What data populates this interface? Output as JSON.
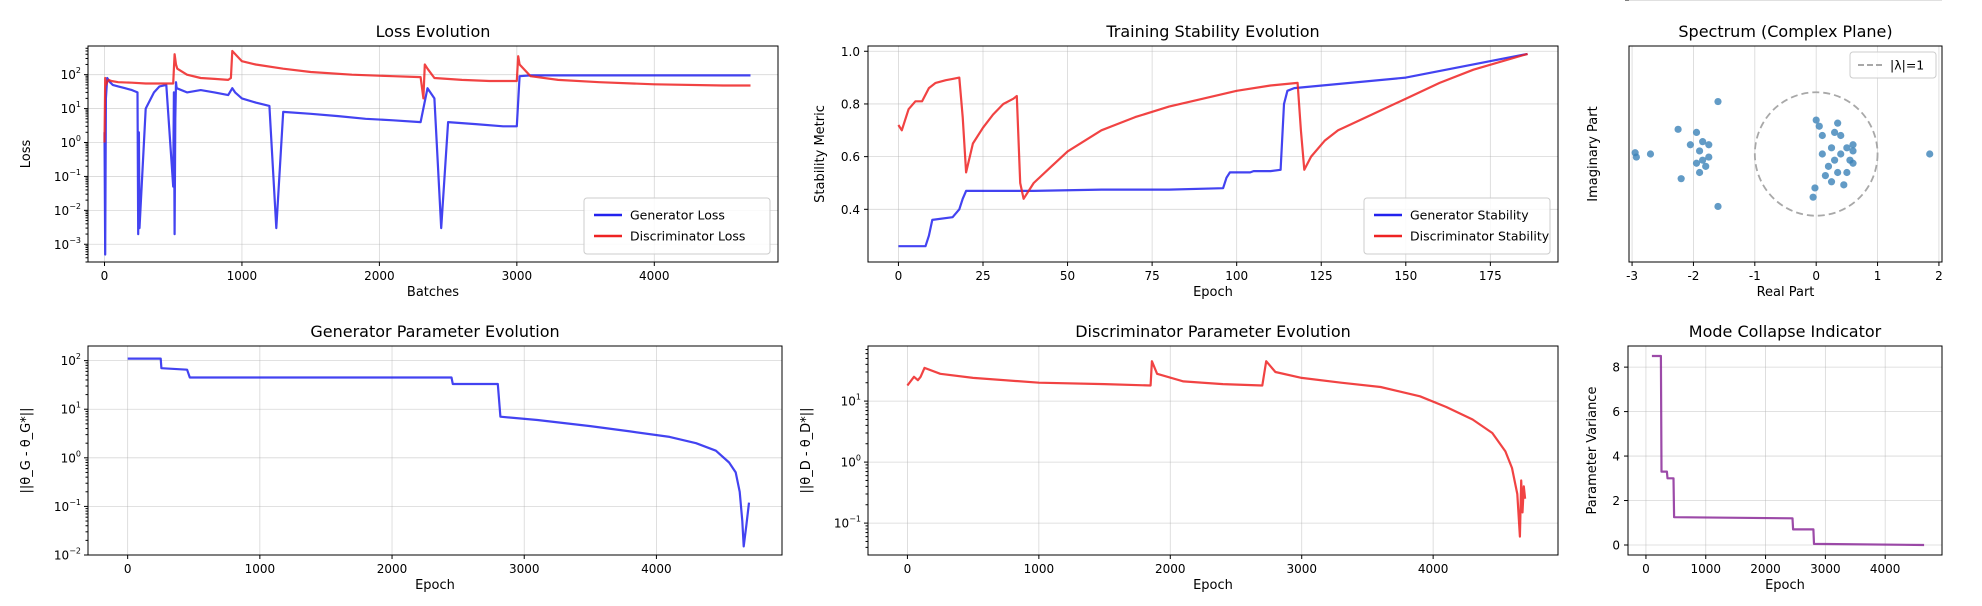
{
  "colors": {
    "generator": "#2222ee",
    "discriminator": "#ee2222",
    "scatter": "#3b82b8",
    "variance": "#8b2a99",
    "unit_circle": "#a8a8a8"
  },
  "chart_data": [
    {
      "id": "loss",
      "type": "line",
      "title": "Loss Evolution",
      "xlabel": "Batches",
      "ylabel": "Loss",
      "yscale": "log",
      "xlim": [
        -120,
        4900
      ],
      "ylim": [
        0.0003,
        700
      ],
      "xticks": [
        0,
        1000,
        2000,
        3000,
        4000
      ],
      "yticks": [
        {
          "v": 0.001,
          "b": "10",
          "e": "−3"
        },
        {
          "v": 0.01,
          "b": "10",
          "e": "−2"
        },
        {
          "v": 0.1,
          "b": "10",
          "e": "−1"
        },
        {
          "v": 1,
          "b": "10",
          "e": "0"
        },
        {
          "v": 10,
          "b": "10",
          "e": "1"
        },
        {
          "v": 100,
          "b": "10",
          "e": "2"
        }
      ],
      "grid": true,
      "legend_position": "lower-right",
      "series": [
        {
          "name": "Generator Loss",
          "color_key": "generator",
          "x": [
            0,
            5,
            10,
            20,
            40,
            60,
            100,
            150,
            200,
            240,
            245,
            250,
            255,
            300,
            360,
            400,
            450,
            500,
            505,
            510,
            515,
            520,
            525,
            600,
            700,
            800,
            900,
            930,
            950,
            1000,
            1100,
            1200,
            1250,
            1300,
            1500,
            1700,
            1900,
            2100,
            2300,
            2350,
            2400,
            2450,
            2500,
            2700,
            2900,
            3000,
            3020,
            3100,
            3500,
            4000,
            4500,
            4700
          ],
          "y": [
            2,
            0.0005,
            20,
            80,
            60,
            50,
            45,
            40,
            35,
            30,
            0.002,
            2,
            0.003,
            10,
            30,
            45,
            50,
            0.05,
            30,
            0.002,
            5,
            60,
            40,
            30,
            35,
            30,
            25,
            40,
            30,
            20,
            15,
            12,
            0.003,
            8,
            7,
            6,
            5,
            4.5,
            4,
            40,
            20,
            0.003,
            4,
            3.5,
            3,
            3,
            90,
            95,
            95,
            95,
            95,
            95
          ]
        },
        {
          "name": "Discriminator Loss",
          "color_key": "discriminator",
          "x": [
            0,
            5,
            10,
            20,
            30,
            50,
            100,
            200,
            300,
            400,
            500,
            510,
            520,
            530,
            600,
            700,
            800,
            900,
            920,
            930,
            1000,
            1100,
            1300,
            1500,
            1800,
            2100,
            2300,
            2320,
            2330,
            2350,
            2400,
            2600,
            2800,
            3000,
            3010,
            3020,
            3100,
            3300,
            3600,
            4000,
            4500,
            4700
          ],
          "y": [
            1,
            80,
            50,
            60,
            70,
            65,
            60,
            58,
            55,
            55,
            55,
            400,
            200,
            150,
            100,
            80,
            75,
            70,
            80,
            500,
            250,
            200,
            150,
            120,
            100,
            90,
            85,
            20,
            200,
            150,
            80,
            70,
            65,
            65,
            350,
            200,
            90,
            70,
            60,
            52,
            48,
            48
          ]
        }
      ]
    },
    {
      "id": "stability",
      "type": "line",
      "title": "Training Stability Evolution",
      "xlabel": "Epoch",
      "ylabel": "Stability Metric",
      "xlim": [
        -9,
        195
      ],
      "ylim": [
        0.2,
        1.02
      ],
      "xticks": [
        0,
        25,
        50,
        75,
        100,
        125,
        150,
        175
      ],
      "yticks": [
        {
          "v": 0.4,
          "t": "0.4"
        },
        {
          "v": 0.6,
          "t": "0.6"
        },
        {
          "v": 0.8,
          "t": "0.8"
        },
        {
          "v": 1.0,
          "t": "1.0"
        }
      ],
      "grid": true,
      "legend_position": "lower-right",
      "series": [
        {
          "name": "Generator Stability",
          "color_key": "generator",
          "x": [
            0,
            8,
            9,
            10,
            16,
            18,
            19,
            20,
            40,
            60,
            80,
            96,
            97,
            98,
            100,
            104,
            105,
            110,
            113,
            114,
            115,
            117,
            150,
            186
          ],
          "y": [
            0.26,
            0.26,
            0.3,
            0.36,
            0.37,
            0.4,
            0.44,
            0.47,
            0.47,
            0.475,
            0.475,
            0.48,
            0.52,
            0.54,
            0.54,
            0.54,
            0.545,
            0.545,
            0.55,
            0.8,
            0.85,
            0.86,
            0.9,
            0.99
          ]
        },
        {
          "name": "Discriminator Stability",
          "color_key": "discriminator",
          "x": [
            0,
            1,
            3,
            5,
            7,
            9,
            11,
            14,
            16,
            18,
            19,
            20,
            22,
            25,
            28,
            31,
            34,
            35,
            36,
            37,
            40,
            45,
            50,
            60,
            70,
            80,
            90,
            100,
            110,
            118,
            119,
            120,
            122,
            126,
            130,
            140,
            150,
            160,
            170,
            186
          ],
          "y": [
            0.72,
            0.7,
            0.78,
            0.81,
            0.81,
            0.86,
            0.88,
            0.89,
            0.895,
            0.9,
            0.75,
            0.54,
            0.65,
            0.71,
            0.76,
            0.8,
            0.82,
            0.83,
            0.5,
            0.44,
            0.5,
            0.56,
            0.62,
            0.7,
            0.75,
            0.79,
            0.82,
            0.85,
            0.87,
            0.88,
            0.7,
            0.55,
            0.6,
            0.66,
            0.7,
            0.76,
            0.82,
            0.88,
            0.93,
            0.99
          ]
        }
      ]
    },
    {
      "id": "spectrum",
      "type": "scatter",
      "title": "Spectrum (Complex Plane)",
      "xlabel": "Real Part",
      "ylabel": "Imaginary Part",
      "xlim": [
        -3.05,
        2.05
      ],
      "ylim": [
        -1.75,
        1.75
      ],
      "xticks": [
        -3,
        -2,
        -1,
        0,
        1,
        2
      ],
      "yticks": [
        -1,
        0,
        1
      ],
      "grid": true,
      "legend_position": "upper-right",
      "unit_circle": {
        "label": "|λ|=1",
        "radius": 1
      },
      "points": [
        [
          -2.95,
          0.02
        ],
        [
          -2.93,
          -0.05
        ],
        [
          -2.7,
          0.0
        ],
        [
          -2.25,
          0.4
        ],
        [
          -2.2,
          -0.4
        ],
        [
          -2.05,
          0.15
        ],
        [
          -1.95,
          0.35
        ],
        [
          -1.95,
          -0.15
        ],
        [
          -1.9,
          0.05
        ],
        [
          -1.9,
          -0.3
        ],
        [
          -1.85,
          0.2
        ],
        [
          -1.85,
          -0.1
        ],
        [
          -1.8,
          -0.2
        ],
        [
          -1.75,
          0.15
        ],
        [
          -1.75,
          -0.05
        ],
        [
          -1.6,
          0.85
        ],
        [
          -1.6,
          -0.85
        ],
        [
          -0.05,
          -0.7
        ],
        [
          -0.02,
          -0.55
        ],
        [
          0.0,
          0.55
        ],
        [
          0.05,
          0.45
        ],
        [
          0.1,
          0.0
        ],
        [
          0.1,
          0.3
        ],
        [
          0.15,
          -0.35
        ],
        [
          0.2,
          -0.2
        ],
        [
          0.25,
          0.1
        ],
        [
          0.25,
          -0.45
        ],
        [
          0.3,
          0.35
        ],
        [
          0.3,
          -0.1
        ],
        [
          0.35,
          0.5
        ],
        [
          0.35,
          -0.3
        ],
        [
          0.4,
          0.0
        ],
        [
          0.4,
          0.3
        ],
        [
          0.45,
          -0.5
        ],
        [
          0.5,
          0.1
        ],
        [
          0.5,
          -0.3
        ],
        [
          0.55,
          -0.1
        ],
        [
          0.6,
          0.15
        ],
        [
          0.6,
          -0.15
        ],
        [
          0.6,
          0.05
        ],
        [
          1.85,
          0.0
        ]
      ]
    },
    {
      "id": "gen_param",
      "type": "line",
      "title": "Generator Parameter Evolution",
      "xlabel": "Epoch",
      "ylabel": "||θ_G - θ_G*||",
      "yscale": "log",
      "xlim": [
        -300,
        4950
      ],
      "ylim": [
        0.01,
        200
      ],
      "xticks": [
        0,
        1000,
        2000,
        3000,
        4000
      ],
      "yticks": [
        {
          "v": 0.01,
          "b": "10",
          "e": "−2"
        },
        {
          "v": 0.1,
          "b": "10",
          "e": "−1"
        },
        {
          "v": 1,
          "b": "10",
          "e": "0"
        },
        {
          "v": 10,
          "b": "10",
          "e": "1"
        },
        {
          "v": 100,
          "b": "10",
          "e": "2"
        }
      ],
      "grid": true,
      "series": [
        {
          "name": "",
          "color_key": "generator",
          "x": [
            0,
            250,
            255,
            450,
            470,
            2450,
            2460,
            2800,
            2820,
            3100,
            3500,
            3800,
            4100,
            4300,
            4450,
            4550,
            4600,
            4630,
            4650,
            4660,
            4680,
            4700
          ],
          "y": [
            110,
            110,
            70,
            65,
            45,
            45,
            33,
            33,
            7,
            6,
            4.5,
            3.5,
            2.7,
            2,
            1.4,
            0.8,
            0.5,
            0.2,
            0.05,
            0.015,
            0.04,
            0.12
          ]
        }
      ]
    },
    {
      "id": "disc_param",
      "type": "line",
      "title": "Discriminator Parameter Evolution",
      "xlabel": "Epoch",
      "ylabel": "||θ_D - θ_D*||",
      "yscale": "log",
      "xlim": [
        -300,
        4950
      ],
      "ylim": [
        0.03,
        80
      ],
      "xticks": [
        0,
        1000,
        2000,
        3000,
        4000
      ],
      "yticks": [
        {
          "v": 0.1,
          "b": "10",
          "e": "−1"
        },
        {
          "v": 1,
          "b": "10",
          "e": "0"
        },
        {
          "v": 10,
          "b": "10",
          "e": "1"
        }
      ],
      "grid": true,
      "series": [
        {
          "name": "",
          "color_key": "discriminator",
          "x": [
            0,
            50,
            80,
            100,
            130,
            250,
            500,
            1000,
            1500,
            1850,
            1860,
            1900,
            2100,
            2400,
            2700,
            2730,
            2800,
            3000,
            3300,
            3600,
            3900,
            4100,
            4300,
            4450,
            4550,
            4600,
            4640,
            4660,
            4670,
            4680,
            4690,
            4700
          ],
          "y": [
            18,
            25,
            22,
            25,
            35,
            28,
            24,
            20,
            19,
            18,
            45,
            28,
            21,
            19,
            18,
            45,
            30,
            24,
            20,
            17,
            12,
            8,
            5,
            3,
            1.5,
            0.8,
            0.3,
            0.06,
            0.5,
            0.15,
            0.4,
            0.25
          ]
        }
      ]
    },
    {
      "id": "mode_collapse",
      "type": "line",
      "title": "Mode Collapse Indicator",
      "xlabel": "Epoch",
      "ylabel": "Parameter Variance",
      "xlim": [
        -300,
        4950
      ],
      "ylim": [
        -0.45,
        8.95
      ],
      "xticks": [
        0,
        1000,
        2000,
        3000,
        4000
      ],
      "yticks": [
        {
          "v": 0,
          "t": "0"
        },
        {
          "v": 2,
          "t": "2"
        },
        {
          "v": 4,
          "t": "4"
        },
        {
          "v": 6,
          "t": "6"
        },
        {
          "v": 8,
          "t": "8"
        }
      ],
      "grid": true,
      "series": [
        {
          "name": "",
          "color_key": "variance",
          "x": [
            100,
            250,
            260,
            350,
            360,
            460,
            470,
            2450,
            2460,
            2800,
            2810,
            4650
          ],
          "y": [
            8.5,
            8.5,
            3.3,
            3.3,
            3.0,
            3.0,
            1.25,
            1.2,
            0.7,
            0.7,
            0.05,
            0.0
          ]
        }
      ]
    }
  ]
}
